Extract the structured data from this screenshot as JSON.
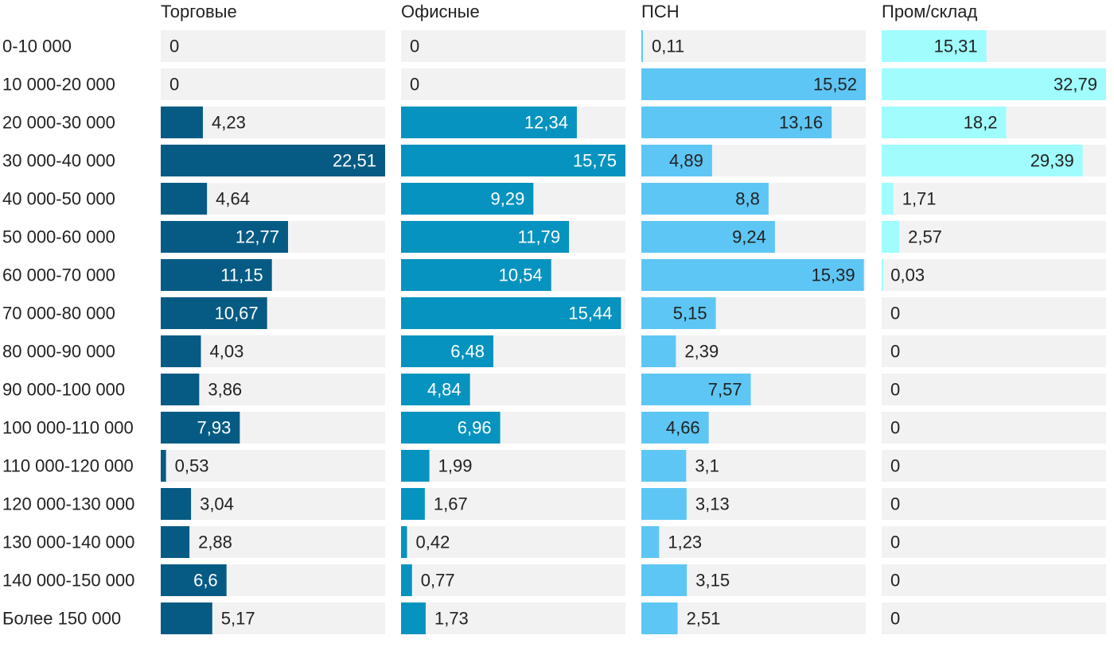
{
  "chart_data": {
    "type": "bar",
    "orientation": "horizontal",
    "layout": "small-multiples",
    "categories": [
      "0-10 000",
      "10 000-20 000",
      "20 000-30 000",
      "30 000-40 000",
      "40 000-50 000",
      "50 000-60 000",
      "60 000-70 000",
      "70 000-80 000",
      "80 000-90 000",
      "90 000-100 000",
      "100 000-110 000",
      "110 000-120 000",
      "120 000-130 000",
      "130 000-140 000",
      "140 000-150 000",
      "Более 150 000"
    ],
    "series": [
      {
        "name": "Торговые",
        "color": "#065b84",
        "text_inside": "#ffffff",
        "values": [
          0,
          0,
          4.23,
          22.51,
          4.64,
          12.77,
          11.15,
          10.67,
          4.03,
          3.86,
          7.93,
          0.53,
          3.04,
          2.88,
          6.6,
          5.17
        ],
        "labels": [
          "0",
          "0",
          "4,23",
          "22,51",
          "4,64",
          "12,77",
          "11,15",
          "10,67",
          "4,03",
          "3,86",
          "7,93",
          "0,53",
          "3,04",
          "2,88",
          "6,6",
          "5,17"
        ]
      },
      {
        "name": "Офисные",
        "color": "#0793bf",
        "text_inside": "#ffffff",
        "values": [
          0,
          0,
          12.34,
          15.75,
          9.29,
          11.79,
          10.54,
          15.44,
          6.48,
          4.84,
          6.96,
          1.99,
          1.67,
          0.42,
          0.77,
          1.73
        ],
        "labels": [
          "0",
          "0",
          "12,34",
          "15,75",
          "9,29",
          "11,79",
          "10,54",
          "15,44",
          "6,48",
          "4,84",
          "6,96",
          "1,99",
          "1,67",
          "0,42",
          "0,77",
          "1,73"
        ]
      },
      {
        "name": "ПСН",
        "color": "#5ec6f4",
        "text_inside": "#222222",
        "values": [
          0.11,
          15.52,
          13.16,
          4.89,
          8.8,
          9.24,
          15.39,
          5.15,
          2.39,
          7.57,
          4.66,
          3.1,
          3.13,
          1.23,
          3.15,
          2.51
        ],
        "labels": [
          "0,11",
          "15,52",
          "13,16",
          "4,89",
          "8,8",
          "9,24",
          "15,39",
          "5,15",
          "2,39",
          "7,57",
          "4,66",
          "3,1",
          "3,13",
          "1,23",
          "3,15",
          "2,51"
        ]
      },
      {
        "name": "Пром/склад",
        "color": "#a0fcfd",
        "text_inside": "#222222",
        "values": [
          15.31,
          32.79,
          18.2,
          29.39,
          1.71,
          2.57,
          0.03,
          0,
          0,
          0,
          0,
          0,
          0,
          0,
          0,
          0
        ],
        "labels": [
          "15,31",
          "32,79",
          "18,2",
          "29,39",
          "1,71",
          "2,57",
          "0,03",
          "0",
          "0",
          "0",
          "0",
          "0",
          "0",
          "0",
          "0",
          "0"
        ]
      }
    ],
    "track_color": "#f2f2f2",
    "label_color": "#222222",
    "legend": "none",
    "grid": false
  }
}
